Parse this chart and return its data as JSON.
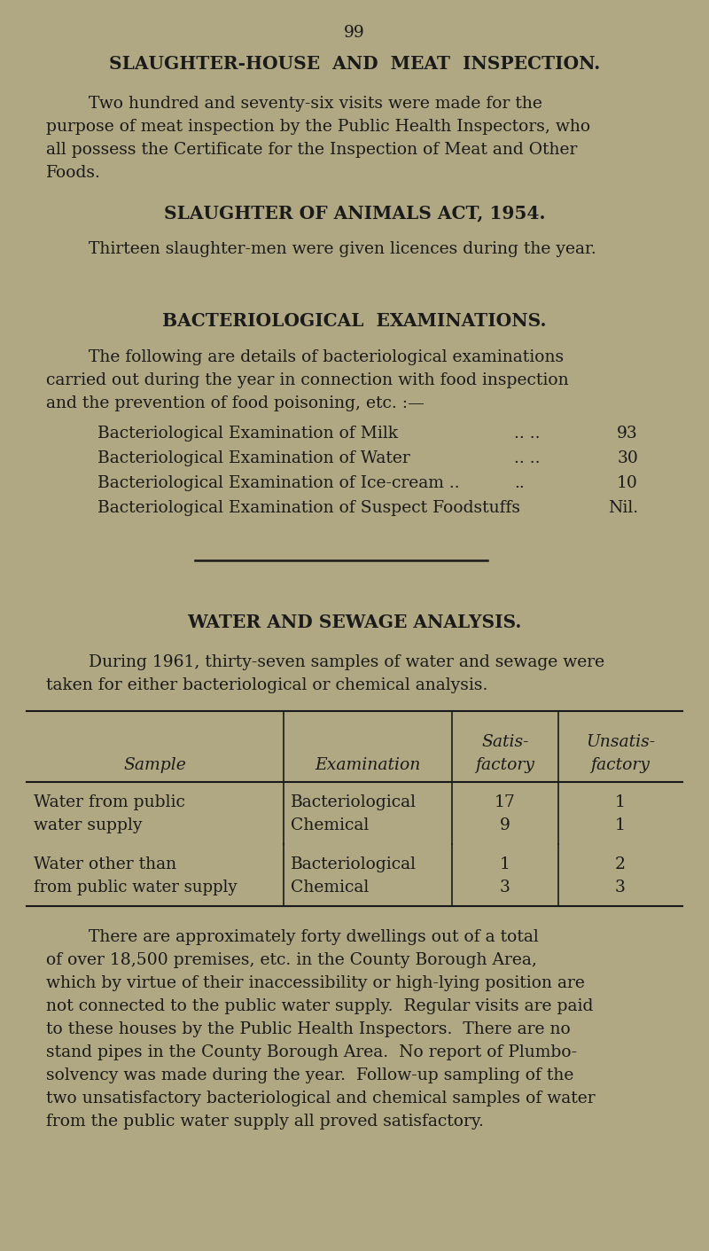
{
  "bg_color": "#b0a882",
  "text_color": "#1a1a1a",
  "page_number": "99",
  "title1": "SLAUGHTER-HOUSE  AND  MEAT  INSPECTION.",
  "title2": "SLAUGHTER OF ANIMALS ACT, 1954.",
  "title3": "BACTERIOLOGICAL  EXAMINATIONS.",
  "title4": "WATER AND SEWAGE ANALYSIS.",
  "para1_lines": [
    "        Two hundred and seventy-six visits were made for the",
    "purpose of meat inspection by the Public Health Inspectors, who",
    "all possess the Certificate for the Inspection of Meat and Other",
    "Foods."
  ],
  "para2": "        Thirteen slaughter-men were given licences during the year.",
  "para3_lines": [
    "        The following are details of bacteriological examinations",
    "carried out during the year in connection with food inspection",
    "and the prevention of food poisoning, etc. :—"
  ],
  "bact_items": [
    [
      "Bacteriological Examination of Milk",
      ".. ..",
      "93"
    ],
    [
      "Bacteriological Examination of Water",
      ".. ..",
      "30"
    ],
    [
      "Bacteriological Examination of Ice-cream ..",
      "..",
      "10"
    ],
    [
      "Bacteriological Examination of Suspect Foodstuffs",
      "",
      "Nil."
    ]
  ],
  "para4_lines": [
    "        During 1961, thirty-seven samples of water and sewage were",
    "taken for either bacteriological or chemical analysis."
  ],
  "para5_lines": [
    "        There are approximately forty dwellings out of a total",
    "of over 18,500 premises, etc. in the County Borough Area,",
    "which by virtue of their inaccessibility or high-lying position are",
    "not connected to the public water supply.  Regular visits are paid",
    "to these houses by the Public Health Inspectors.  There are no",
    "stand pipes in the County Borough Area.  No report of Plumbo-",
    "solvency was made during the year.  Follow-up sampling of the",
    "two unsatisfactory bacteriological and chemical samples of water",
    "from the public water supply all proved satisfactory."
  ]
}
